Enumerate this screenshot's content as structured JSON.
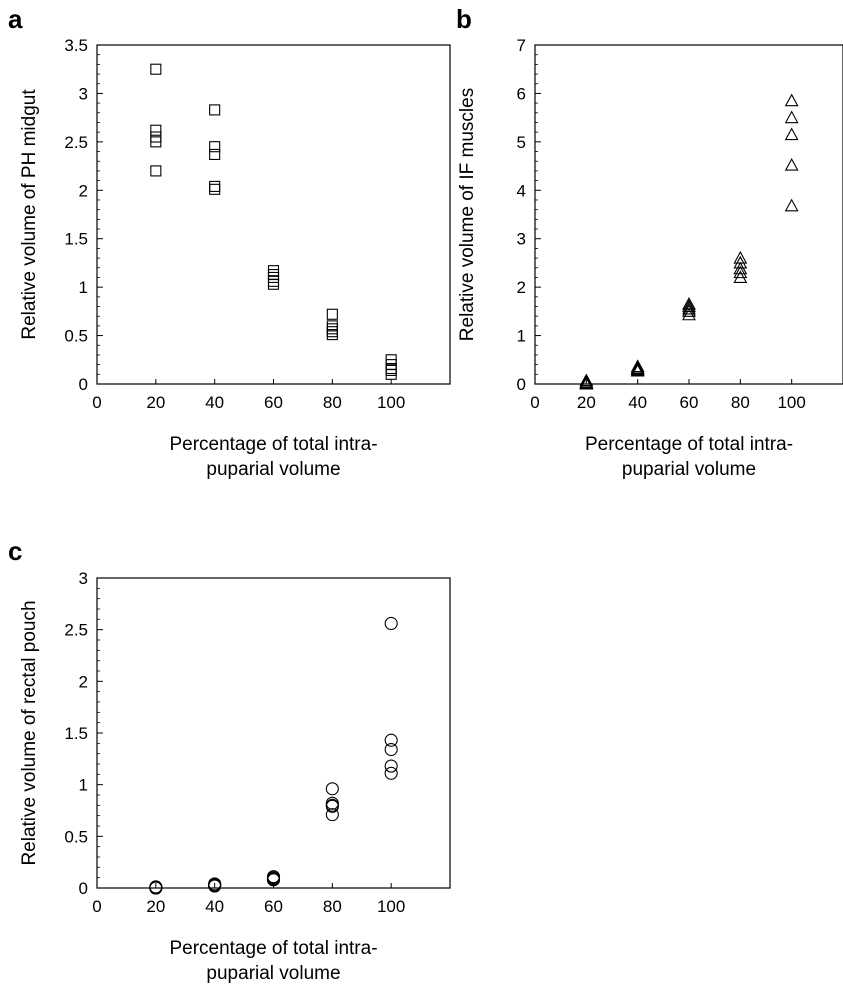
{
  "chart_data": [
    {
      "panel": "a",
      "type": "scatter",
      "marker": "square",
      "xlabel": [
        "Percentage of total intra-",
        "puparial volume"
      ],
      "ylabel": "Relative volume of PH midgut",
      "xlim": [
        0,
        120
      ],
      "ylim": [
        0,
        3.5
      ],
      "xticks": [
        "0",
        "20",
        "40",
        "60",
        "80",
        "100"
      ],
      "yticks": [
        "0",
        "0.5",
        "1",
        "1.5",
        "2",
        "2.5",
        "3",
        "3.5"
      ],
      "points": [
        [
          20,
          3.25
        ],
        [
          20,
          2.62
        ],
        [
          20,
          2.55
        ],
        [
          20,
          2.5
        ],
        [
          20,
          2.2
        ],
        [
          40,
          2.83
        ],
        [
          40,
          2.45
        ],
        [
          40,
          2.37
        ],
        [
          40,
          2.04
        ],
        [
          40,
          2.01
        ],
        [
          60,
          1.17
        ],
        [
          60,
          1.13
        ],
        [
          60,
          1.1
        ],
        [
          60,
          1.06
        ],
        [
          60,
          1.03
        ],
        [
          80,
          0.72
        ],
        [
          80,
          0.6
        ],
        [
          80,
          0.57
        ],
        [
          80,
          0.54
        ],
        [
          80,
          0.51
        ],
        [
          100,
          0.25
        ],
        [
          100,
          0.2
        ],
        [
          100,
          0.16
        ],
        [
          100,
          0.14
        ],
        [
          100,
          0.1
        ]
      ]
    },
    {
      "panel": "b",
      "type": "scatter",
      "marker": "triangle",
      "xlabel": [
        "Percentage of total intra-",
        "puparial volume"
      ],
      "ylabel": "Relative volume of IF muscles",
      "xlim": [
        0,
        120
      ],
      "ylim": [
        0,
        7
      ],
      "xticks": [
        "0",
        "20",
        "40",
        "60",
        "80",
        "100"
      ],
      "yticks": [
        "0",
        "1",
        "2",
        "3",
        "4",
        "5",
        "6",
        "7"
      ],
      "points": [
        [
          20,
          0.07
        ],
        [
          20,
          0.04
        ],
        [
          20,
          0.02
        ],
        [
          20,
          0.01
        ],
        [
          20,
          0.0
        ],
        [
          40,
          0.36
        ],
        [
          40,
          0.33
        ],
        [
          40,
          0.31
        ],
        [
          40,
          0.29
        ],
        [
          40,
          0.27
        ],
        [
          60,
          1.65
        ],
        [
          60,
          1.6
        ],
        [
          60,
          1.55
        ],
        [
          60,
          1.5
        ],
        [
          60,
          1.43
        ],
        [
          80,
          2.6
        ],
        [
          80,
          2.5
        ],
        [
          80,
          2.38
        ],
        [
          80,
          2.3
        ],
        [
          80,
          2.2
        ],
        [
          100,
          5.85
        ],
        [
          100,
          5.5
        ],
        [
          100,
          5.15
        ],
        [
          100,
          4.52
        ],
        [
          100,
          3.68
        ]
      ]
    },
    {
      "panel": "c",
      "type": "scatter",
      "marker": "circle",
      "xlabel": [
        "Percentage of total intra-",
        "puparial volume"
      ],
      "ylabel": "Relative volume of rectal pouch",
      "xlim": [
        0,
        120
      ],
      "ylim": [
        0,
        3
      ],
      "xticks": [
        "0",
        "20",
        "40",
        "60",
        "80",
        "100"
      ],
      "yticks": [
        "0",
        "0.5",
        "1",
        "1.5",
        "2",
        "2.5",
        "3"
      ],
      "points": [
        [
          20,
          0.01
        ],
        [
          20,
          0.01
        ],
        [
          20,
          0.0
        ],
        [
          20,
          0.0
        ],
        [
          20,
          0.0
        ],
        [
          40,
          0.04
        ],
        [
          40,
          0.03
        ],
        [
          40,
          0.03
        ],
        [
          40,
          0.02
        ],
        [
          40,
          0.02
        ],
        [
          60,
          0.11
        ],
        [
          60,
          0.1
        ],
        [
          60,
          0.09
        ],
        [
          60,
          0.08
        ],
        [
          60,
          0.08
        ],
        [
          80,
          0.96
        ],
        [
          80,
          0.82
        ],
        [
          80,
          0.8
        ],
        [
          80,
          0.79
        ],
        [
          80,
          0.71
        ],
        [
          100,
          2.56
        ],
        [
          100,
          1.43
        ],
        [
          100,
          1.34
        ],
        [
          100,
          1.18
        ],
        [
          100,
          1.11
        ]
      ]
    }
  ]
}
